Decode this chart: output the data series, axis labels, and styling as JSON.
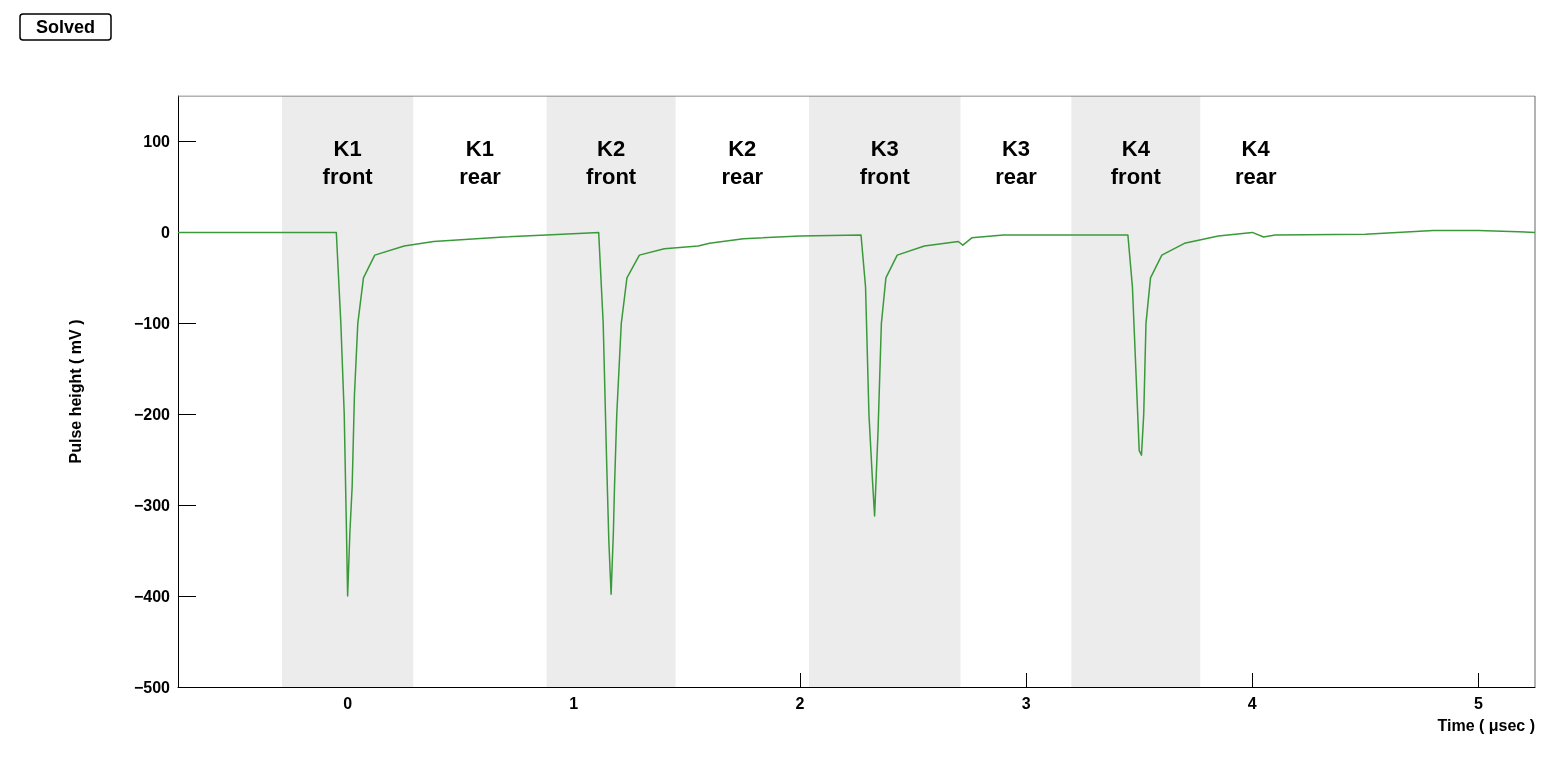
{
  "chart_data": {
    "type": "line",
    "title": "Solved",
    "xlabel": "Time ( μsec )",
    "ylabel": "Pulse height ( mV )",
    "xlim": [
      -0.75,
      5.25
    ],
    "xticks": [
      0,
      1,
      2,
      3,
      4,
      5
    ],
    "ylim": [
      -500,
      150
    ],
    "yticks": [
      -500,
      -400,
      -300,
      -200,
      -100,
      0,
      100
    ],
    "grid": false,
    "marker": "none",
    "line_style": "solid",
    "series": [
      {
        "color": "#3a9a3a",
        "x": [
          -0.75,
          -0.3,
          -0.05,
          -0.03,
          -0.015,
          -0.005,
          0.0,
          0.01,
          0.02,
          0.03,
          0.045,
          0.07,
          0.12,
          0.25,
          0.38,
          0.69,
          0.95,
          1.11,
          1.13,
          1.145,
          1.155,
          1.165,
          1.175,
          1.18,
          1.19,
          1.21,
          1.235,
          1.29,
          1.4,
          1.55,
          1.6,
          1.75,
          2.0,
          2.27,
          2.29,
          2.305,
          2.32,
          2.33,
          2.345,
          2.36,
          2.38,
          2.43,
          2.55,
          2.7,
          2.72,
          2.76,
          2.9,
          3.45,
          3.47,
          3.485,
          3.5,
          3.51,
          3.52,
          3.53,
          3.55,
          3.6,
          3.7,
          3.85,
          4.0,
          4.05,
          4.1,
          4.5,
          4.8,
          5.0,
          5.25
        ],
        "values": [
          0,
          0,
          0,
          -100,
          -200,
          -330,
          -400,
          -330,
          -280,
          -180,
          -100,
          -50,
          -25,
          -15,
          -10,
          -5,
          -2,
          0,
          -100,
          -250,
          -340,
          -398,
          -330,
          -280,
          -200,
          -100,
          -50,
          -25,
          -18,
          -15,
          -12,
          -7,
          -4,
          -3,
          -60,
          -200,
          -270,
          -312,
          -220,
          -100,
          -50,
          -25,
          -15,
          -10,
          -14,
          -6,
          -3,
          -3,
          -60,
          -150,
          -240,
          -245,
          -200,
          -100,
          -50,
          -25,
          -12,
          -4,
          0,
          -5,
          -3,
          -2,
          2,
          2,
          0
        ]
      }
    ],
    "bands": [
      {
        "axis": "x",
        "from": -0.29,
        "to": 0.29,
        "color": "#ececec",
        "label": "K1\nfront"
      },
      {
        "axis": "x",
        "from": 0.88,
        "to": 1.45,
        "color": "#ececec",
        "label": "K2\nfront"
      },
      {
        "axis": "x",
        "from": 2.04,
        "to": 2.71,
        "color": "#ececec",
        "label": "K3\nfront"
      },
      {
        "axis": "x",
        "from": 3.2,
        "to": 3.77,
        "color": "#ececec",
        "label": "K4\nfront"
      }
    ],
    "annotations": [
      "K1\nrear",
      "K2\nrear",
      "K3\nrear",
      "K4\nrear"
    ]
  }
}
